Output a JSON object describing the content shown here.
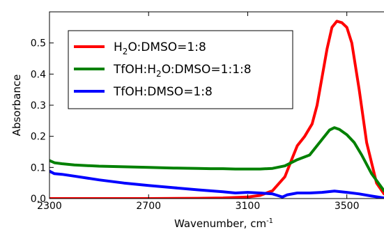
{
  "chart_data": {
    "type": "line",
    "xlabel": "Wavenumber, cm",
    "xlabel_superscript": "-1",
    "ylabel": "Absorbance",
    "xlim": [
      2300,
      3650
    ],
    "ylim": [
      0,
      0.6
    ],
    "x_ticks": [
      2300,
      2700,
      3100,
      3500
    ],
    "x_tick_labels": [
      "2300",
      "2700",
      "3100",
      "3500"
    ],
    "y_ticks": [
      0.0,
      0.1,
      0.2,
      0.3,
      0.4,
      0.5
    ],
    "y_tick_labels": [
      "0.0",
      "0.1",
      "0.2",
      "0.3",
      "0.4",
      "0.5"
    ],
    "grid": false,
    "legend_position": "top-left",
    "series": [
      {
        "name": "H2O:DMSO=1:8",
        "label_parts": [
          "H",
          "2",
          "O:DMSO=1:8"
        ],
        "color": "#ff0000",
        "x": [
          2300,
          2500,
          2700,
          2900,
          3000,
          3100,
          3150,
          3200,
          3250,
          3280,
          3300,
          3330,
          3360,
          3380,
          3400,
          3420,
          3440,
          3460,
          3480,
          3500,
          3520,
          3550,
          3580,
          3620,
          3650
        ],
        "y": [
          0.0,
          0.0,
          0.0,
          0.001,
          0.002,
          0.005,
          0.01,
          0.025,
          0.07,
          0.13,
          0.17,
          0.2,
          0.24,
          0.3,
          0.39,
          0.48,
          0.55,
          0.57,
          0.565,
          0.55,
          0.5,
          0.35,
          0.18,
          0.05,
          0.015
        ]
      },
      {
        "name": "TfOH:H2O:DMSO=1:1:8",
        "label_parts": [
          "TfOH:H",
          "2",
          "O:DMSO=1:1:8"
        ],
        "color": "#008000",
        "x": [
          2300,
          2320,
          2350,
          2400,
          2500,
          2600,
          2700,
          2800,
          2900,
          2950,
          3000,
          3050,
          3100,
          3150,
          3200,
          3250,
          3300,
          3350,
          3400,
          3430,
          3450,
          3470,
          3500,
          3530,
          3560,
          3600,
          3650
        ],
        "y": [
          0.122,
          0.115,
          0.112,
          0.108,
          0.104,
          0.102,
          0.1,
          0.098,
          0.097,
          0.096,
          0.096,
          0.095,
          0.095,
          0.095,
          0.097,
          0.105,
          0.125,
          0.14,
          0.19,
          0.22,
          0.228,
          0.222,
          0.205,
          0.18,
          0.14,
          0.08,
          0.025
        ]
      },
      {
        "name": "TfOH:DMSO=1:8",
        "label_parts": [
          "TfOH:DMSO=1:8"
        ],
        "color": "#0000ff",
        "x": [
          2300,
          2320,
          2350,
          2400,
          2500,
          2600,
          2700,
          2800,
          2900,
          3000,
          3050,
          3100,
          3150,
          3200,
          3220,
          3240,
          3260,
          3300,
          3350,
          3400,
          3450,
          3500,
          3550,
          3600,
          3650
        ],
        "y": [
          0.088,
          0.08,
          0.078,
          0.072,
          0.06,
          0.05,
          0.042,
          0.035,
          0.028,
          0.022,
          0.018,
          0.02,
          0.018,
          0.015,
          0.01,
          0.005,
          0.012,
          0.018,
          0.018,
          0.02,
          0.024,
          0.02,
          0.015,
          0.008,
          0.002
        ]
      }
    ]
  }
}
